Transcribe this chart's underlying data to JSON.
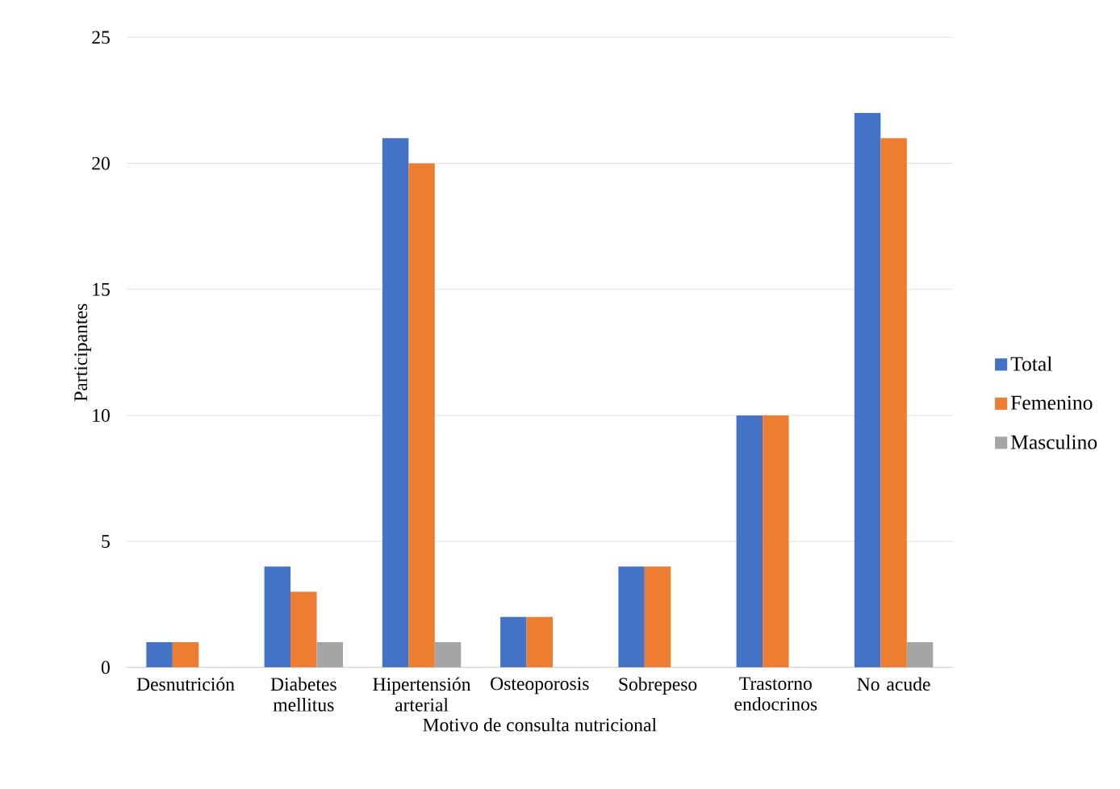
{
  "chart_data": {
    "type": "bar",
    "xlabel": "Motivo de consulta nutricional",
    "ylabel": "Participantes",
    "categories": [
      "Desnutrición",
      "Diabetes mellitus",
      "Hipertensión arterial",
      "Osteoporosis",
      "Sobrepeso",
      "Trastorno endocrinos",
      "No acude"
    ],
    "series": [
      {
        "name": "Total",
        "color": "#4472c4",
        "values": [
          1,
          4,
          21,
          2,
          4,
          10,
          22
        ]
      },
      {
        "name": "Femenino",
        "color": "#ed7d31",
        "values": [
          1,
          3,
          20,
          2,
          4,
          10,
          21
        ]
      },
      {
        "name": "Masculino",
        "color": "#a5a5a5",
        "values": [
          0,
          1,
          1,
          0,
          0,
          0,
          1
        ]
      }
    ],
    "ylim": [
      0,
      25
    ],
    "yticks": [
      0,
      5,
      10,
      15,
      20,
      25
    ],
    "grid": "y",
    "legend": "right"
  }
}
